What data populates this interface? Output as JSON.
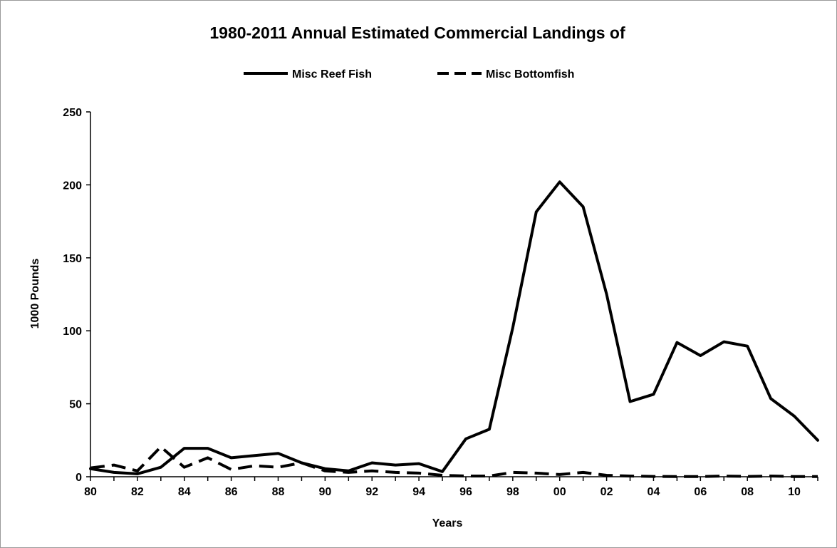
{
  "chart_data": {
    "type": "line",
    "title": "1980-2011 Annual Estimated Commercial Landings of",
    "xlabel": "Years",
    "ylabel": "1000 Pounds",
    "ylim": [
      0,
      250
    ],
    "yticks": [
      "0",
      "50",
      "100",
      "150",
      "200",
      "250"
    ],
    "xlim": [
      1980,
      2011
    ],
    "xticks": [
      "80",
      "82",
      "84",
      "86",
      "88",
      "90",
      "92",
      "94",
      "96",
      "98",
      "00",
      "02",
      "04",
      "06",
      "08",
      "10"
    ],
    "x": [
      1980,
      1981,
      1982,
      1983,
      1984,
      1985,
      1986,
      1987,
      1988,
      1989,
      1990,
      1991,
      1992,
      1993,
      1994,
      1995,
      1996,
      1997,
      1998,
      1999,
      2000,
      2001,
      2002,
      2003,
      2004,
      2005,
      2006,
      2007,
      2008,
      2009,
      2010,
      2011
    ],
    "legend_position": "top",
    "grid": false,
    "series": [
      {
        "name": "Misc Reef Fish",
        "style": "solid",
        "color": "#000000",
        "values": [
          5.5,
          3,
          2,
          6.5,
          19.5,
          19.5,
          13,
          14.5,
          16,
          9.5,
          5.5,
          4,
          9.5,
          8,
          9,
          3.5,
          26,
          32.5,
          102,
          181.5,
          202,
          185,
          125,
          51.5,
          56.5,
          92,
          83,
          92.5,
          89.5,
          53.5,
          41.5,
          25
        ]
      },
      {
        "name": "Misc Bottomfish",
        "style": "dashed",
        "color": "#000000",
        "values": [
          6,
          8,
          4,
          20.5,
          6.5,
          13,
          5,
          7.5,
          6.5,
          9.5,
          4,
          3,
          4,
          3,
          2.5,
          1,
          0.5,
          0.5,
          3,
          2.5,
          1.5,
          3,
          1,
          0.5,
          0.2,
          0.1,
          0.1,
          0.5,
          0.2,
          0.5,
          0.1,
          0.1
        ]
      }
    ]
  }
}
